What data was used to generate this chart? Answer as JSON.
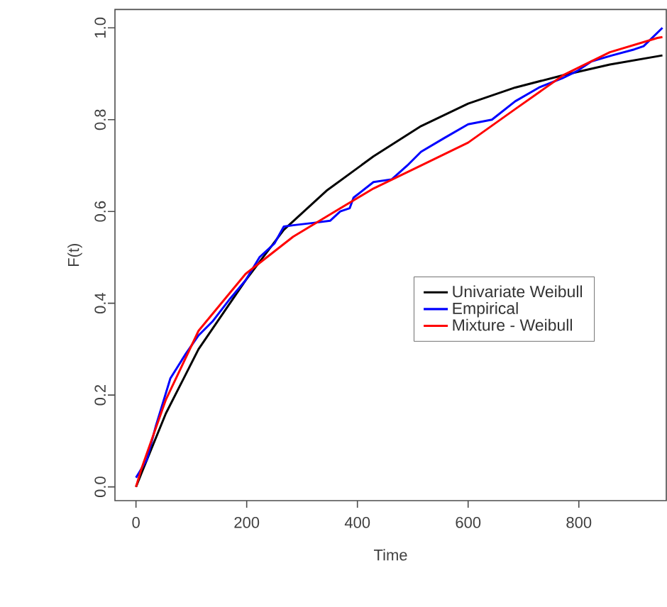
{
  "chart_data": {
    "type": "line",
    "xlabel": "Time",
    "ylabel": "F(t)",
    "xlim": [
      -38,
      958
    ],
    "ylim": [
      -0.03,
      1.04
    ],
    "xticks": [
      0,
      200,
      400,
      600,
      800
    ],
    "yticks": [
      {
        "value": 0,
        "label": "0.0"
      },
      0.2,
      0.4,
      0.6,
      0.8,
      {
        "value": 1,
        "label": "1.0"
      }
    ],
    "grid": false,
    "legend": "right",
    "series": [
      {
        "name": "Univariate Weibull",
        "color": "#000000",
        "x": [
          0,
          10,
          54,
          113,
          198,
          267,
          344,
          429,
          515,
          600,
          685,
          772,
          856,
          951
        ],
        "values": [
          0,
          0.03,
          0.16,
          0.3,
          0.45,
          0.56,
          0.645,
          0.72,
          0.786,
          0.835,
          0.87,
          0.897,
          0.92,
          0.94
        ]
      },
      {
        "name": "Empirical",
        "color": "#0000ff",
        "x": [
          0,
          5,
          20,
          36,
          62,
          90,
          113,
          138,
          170,
          198,
          223,
          250,
          267,
          284,
          320,
          351,
          369,
          386,
          393,
          429,
          462,
          490,
          515,
          557,
          600,
          643,
          685,
          728,
          770,
          797,
          823,
          860,
          900,
          917,
          951
        ],
        "values": [
          0.02,
          0.03,
          0.06,
          0.133,
          0.236,
          0.29,
          0.33,
          0.36,
          0.41,
          0.45,
          0.5,
          0.53,
          0.567,
          0.57,
          0.575,
          0.58,
          0.6,
          0.607,
          0.63,
          0.664,
          0.67,
          0.7,
          0.73,
          0.76,
          0.79,
          0.8,
          0.84,
          0.87,
          0.89,
          0.906,
          0.927,
          0.94,
          0.953,
          0.96,
          1.0
        ]
      },
      {
        "name": "Mixture - Weibull",
        "color": "#ff0000",
        "x": [
          0,
          10,
          54,
          113,
          198,
          284,
          369,
          429,
          515,
          600,
          685,
          772,
          856,
          942,
          951
        ],
        "values": [
          0,
          0.04,
          0.19,
          0.34,
          0.464,
          0.545,
          0.607,
          0.65,
          0.7,
          0.75,
          0.823,
          0.897,
          0.947,
          0.978,
          0.98
        ]
      }
    ]
  }
}
